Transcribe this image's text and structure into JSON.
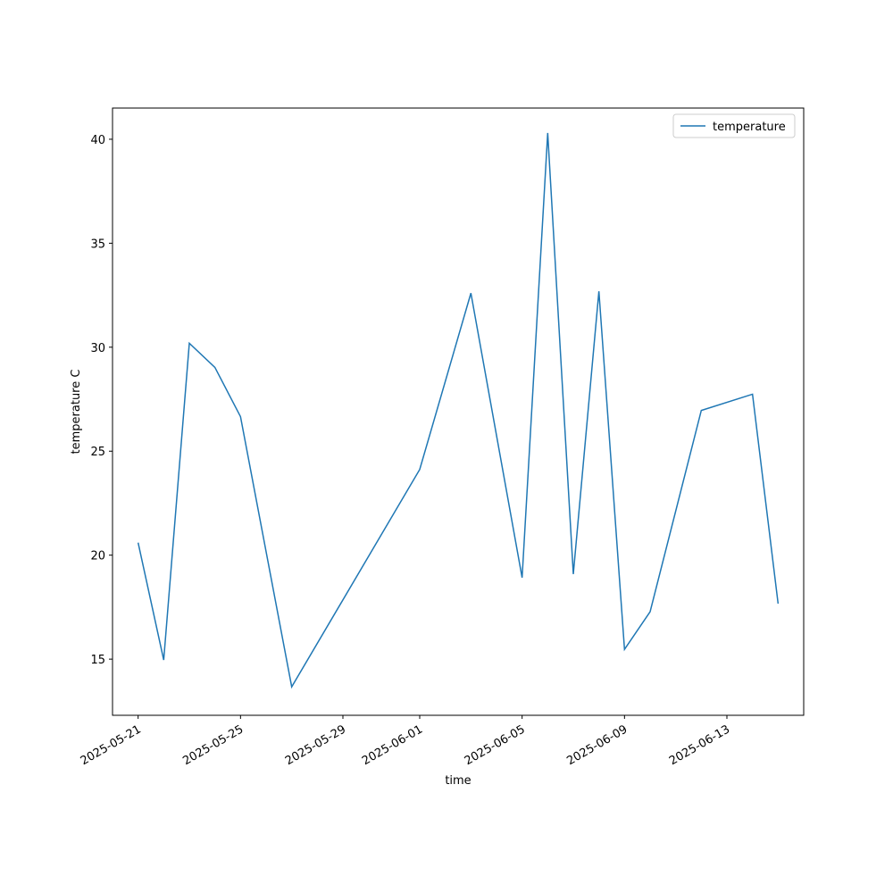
{
  "chart_data": {
    "type": "line",
    "x_label": "time",
    "y_label": "temperature C",
    "x": [
      "2025-05-21",
      "2025-05-22",
      "2025-05-23",
      "2025-05-24",
      "2025-05-25",
      "2025-05-27",
      "2025-06-01",
      "2025-06-03",
      "2025-06-05",
      "2025-06-06",
      "2025-06-07",
      "2025-06-08",
      "2025-06-09",
      "2025-06-10",
      "2025-06-12",
      "2025-06-14",
      "2025-06-15"
    ],
    "series": [
      {
        "name": "temperature",
        "color": "#1f77b4",
        "values": [
          20.6,
          14.96,
          30.19,
          29.03,
          26.66,
          13.67,
          24.12,
          32.6,
          18.92,
          40.3,
          19.09,
          32.69,
          15.47,
          17.28,
          26.96,
          27.74,
          17.67
        ]
      }
    ],
    "xlim": [
      "2025-05-20",
      "2025-06-16"
    ],
    "xticks": [
      "2025-05-21",
      "2025-05-25",
      "2025-05-29",
      "2025-06-01",
      "2025-06-05",
      "2025-06-09",
      "2025-06-13"
    ],
    "ylim": [
      12.3,
      41.5
    ],
    "yticks": [
      15,
      20,
      25,
      30,
      35,
      40
    ],
    "grid": false,
    "legend": "upper right"
  }
}
